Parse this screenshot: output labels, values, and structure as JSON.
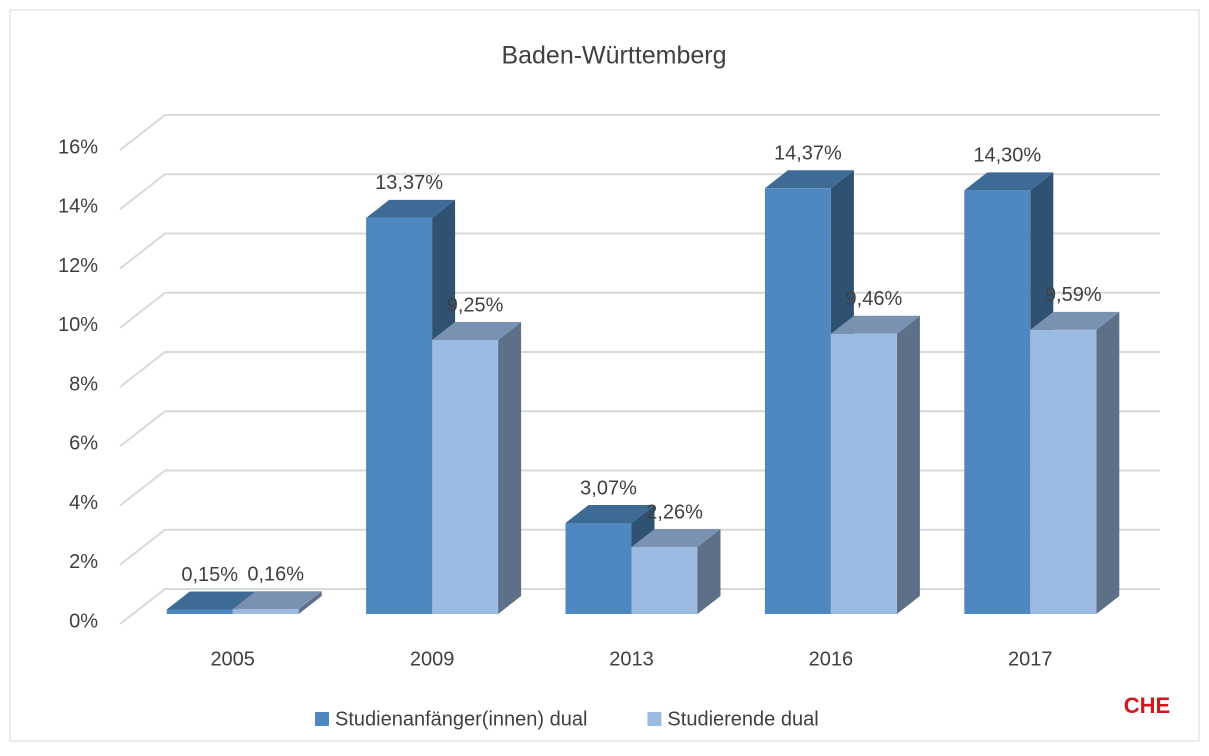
{
  "chart_data": {
    "type": "bar3d",
    "title": "Baden-Württemberg",
    "categories": [
      "2005",
      "2009",
      "2013",
      "2016",
      "2017"
    ],
    "series": [
      {
        "name": "Studienanfänger(innen) dual",
        "color": "#4f88c0",
        "values": [
          0.15,
          13.37,
          3.07,
          14.37,
          14.3
        ],
        "value_labels": [
          "0,15%",
          "13,37%",
          "3,07%",
          "14,37%",
          "14,30%"
        ]
      },
      {
        "name": "Studierende dual",
        "color": "#9bbbe3",
        "values": [
          0.16,
          9.25,
          2.26,
          9.46,
          9.59
        ],
        "value_labels": [
          "0,16%",
          "9,25%",
          "2,26%",
          "9,46%",
          "9,59%"
        ]
      }
    ],
    "ylim": [
      0,
      16
    ],
    "yticks": [
      {
        "value": 0,
        "label": "0%"
      },
      {
        "value": 2,
        "label": "2%"
      },
      {
        "value": 4,
        "label": "4%"
      },
      {
        "value": 6,
        "label": "6%"
      },
      {
        "value": 8,
        "label": "8%"
      },
      {
        "value": 10,
        "label": "10%"
      },
      {
        "value": 12,
        "label": "12%"
      },
      {
        "value": 14,
        "label": "14%"
      },
      {
        "value": 16,
        "label": "16%"
      }
    ],
    "grid": true,
    "legend": "bottom"
  },
  "logo": "CHE"
}
